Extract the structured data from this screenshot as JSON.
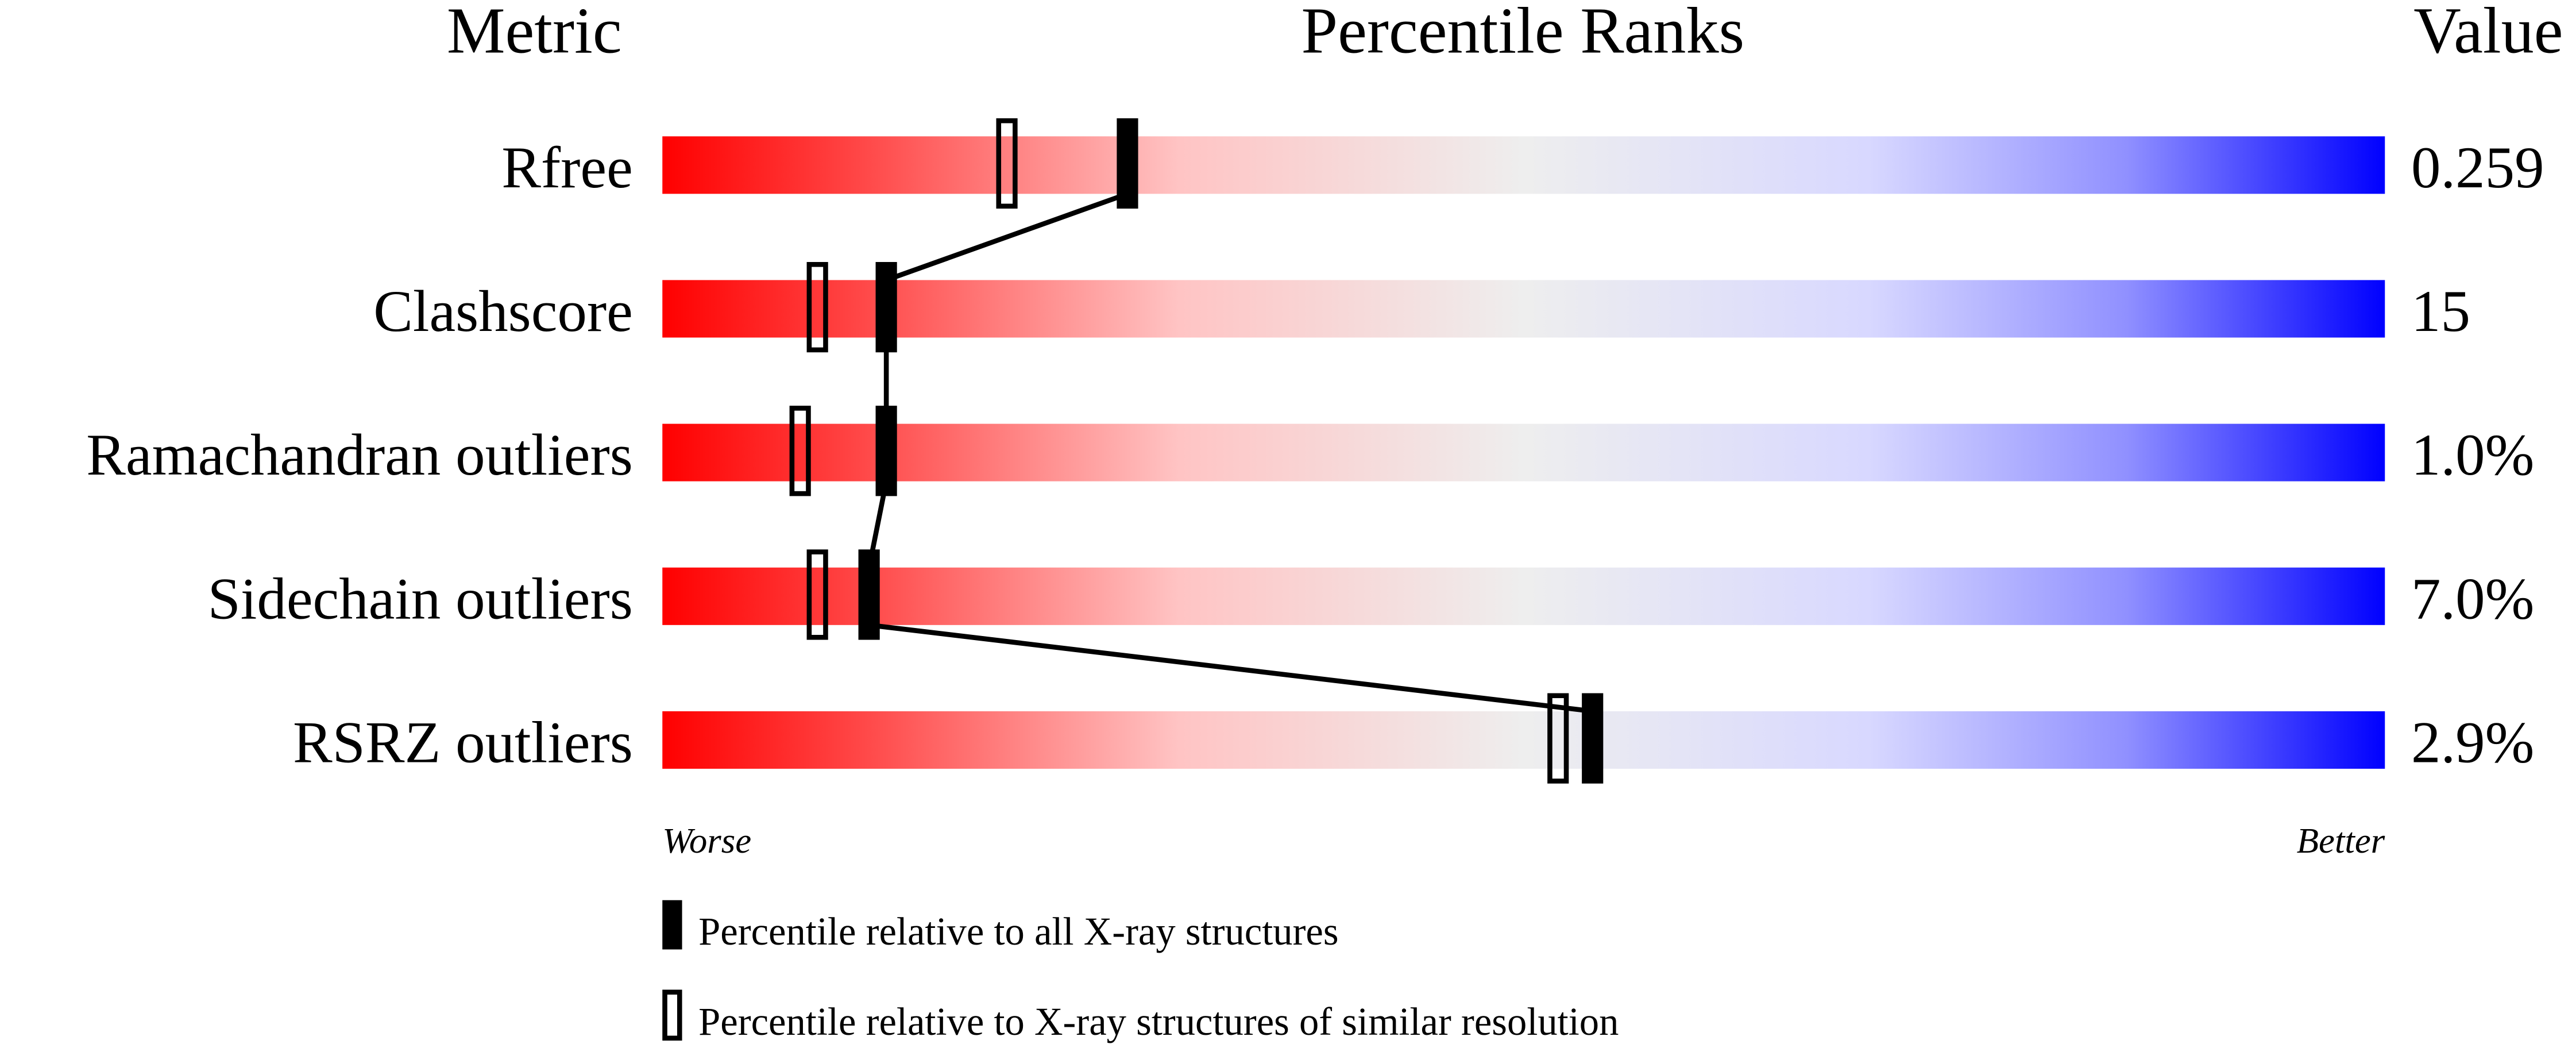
{
  "chart_data": {
    "type": "percentile-bar",
    "headers": {
      "metric": "Metric",
      "ranks": "Percentile Ranks",
      "value": "Value"
    },
    "xlim": [
      0,
      100
    ],
    "gradient_colors": {
      "worst": "#ff0000",
      "middle": "#eeeeee",
      "best": "#0000ff"
    },
    "rows": [
      {
        "metric": "Rfree",
        "value": "0.259",
        "percentile_all": 27,
        "percentile_similar": 20
      },
      {
        "metric": "Clashscore",
        "value": "15",
        "percentile_all": 13,
        "percentile_similar": 9
      },
      {
        "metric": "Ramachandran outliers",
        "value": "1.0%",
        "percentile_all": 13,
        "percentile_similar": 8
      },
      {
        "metric": "Sidechain outliers",
        "value": "7.0%",
        "percentile_all": 12,
        "percentile_similar": 9
      },
      {
        "metric": "RSRZ outliers",
        "value": "2.9%",
        "percentile_all": 54,
        "percentile_similar": 52
      }
    ],
    "axis_labels": {
      "left": "Worse",
      "right": "Better"
    },
    "legend": [
      {
        "marker": "filled",
        "label": "Percentile relative to all X-ray structures"
      },
      {
        "marker": "open",
        "label": "Percentile relative to X-ray structures of similar resolution"
      }
    ]
  }
}
